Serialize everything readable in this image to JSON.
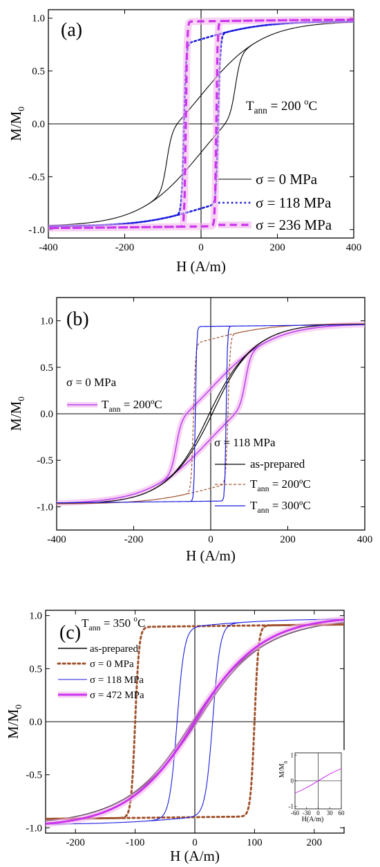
{
  "chart_data": [
    {
      "type": "line",
      "panel_label": "(a)",
      "xlabel": "H (A/m)",
      "ylabel": "M/M₀",
      "xlim": [
        -400,
        400
      ],
      "ylim": [
        -1.08,
        1.08
      ],
      "xticks": [
        -400,
        -200,
        0,
        200,
        400
      ],
      "yticks": [
        -1.0,
        -0.5,
        0.0,
        0.5,
        1.0
      ],
      "annotation": "T_ann = 200 °C",
      "annotation_parts": {
        "main": "T",
        "sub": "ann",
        "rest": " = 200 ",
        "sup": "o",
        "end": "C"
      },
      "legend_position": "bottom-right",
      "series": [
        {
          "name": "σ = 0 MPa",
          "color": "#000000",
          "style": "solid",
          "Hc": 90,
          "Ms": 0.97,
          "Mr": 0.27,
          "k": 0.072,
          "h0": 160,
          "p": 3
        },
        {
          "name": "σ = 118 MPa",
          "color": "#1a1adf",
          "style": "dotted",
          "Hc": 45,
          "Ms": 0.97,
          "Mr": 0.8,
          "k": 0.18,
          "h0": 160,
          "p": 5
        },
        {
          "name": "σ = 236 MPa",
          "color": "#cc33ee",
          "style": "dashed",
          "Hc": 40,
          "Ms": 0.99,
          "Mr": 0.97,
          "k": 0.3,
          "h0": 400,
          "p": 4
        }
      ]
    },
    {
      "type": "line",
      "panel_label": "(b)",
      "xlabel": "H (A/m)",
      "ylabel": "M/M₀",
      "xlim": [
        -400,
        400
      ],
      "ylim": [
        -1.25,
        1.25
      ],
      "xticks": [
        -400,
        -200,
        0,
        200,
        400
      ],
      "yticks": [
        -1.0,
        -0.5,
        0.0,
        0.5,
        1.0
      ],
      "legend_position": "left / bottom-right",
      "legend_groups": [
        {
          "title": "σ = 0 MPa",
          "entries": [
            {
              "name": "T_ann = 200ºC",
              "parts": {
                "main": "T",
                "sub": "ann",
                "rest": " = 200ºC"
              }
            }
          ]
        },
        {
          "title": "σ = 118 MPa",
          "entries": [
            {
              "name": "as-prepared",
              "parts": {
                "main": "as-prepared",
                "sub": "",
                "rest": ""
              }
            },
            {
              "name": "T_ann = 200ºC",
              "parts": {
                "main": "T",
                "sub": "ann",
                "rest": " = 200ºC"
              }
            },
            {
              "name": "T_ann = 300ºC",
              "parts": {
                "main": "T",
                "sub": "ann",
                "rest": " = 300ºC"
              }
            }
          ]
        }
      ],
      "series": [
        {
          "name": "σ = 0 MPa, T_ann = 200ºC",
          "color": "#bb44ee",
          "style": "solid",
          "Hc": 90,
          "Ms": 0.97,
          "Mr": 0.27,
          "k": 0.072,
          "h0": 160,
          "p": 3
        },
        {
          "name": "σ = 118 MPa, as-prepared",
          "color": "#000000",
          "style": "solid",
          "Hc": 15,
          "Ms": 0.97,
          "Mr": 0.12,
          "k": 0.018,
          "h0": 130,
          "p": 4
        },
        {
          "name": "σ = 118 MPa, T_ann = 200ºC",
          "color": "#a0522d",
          "style": "dashed",
          "Hc": 45,
          "Ms": 0.97,
          "Mr": 0.8,
          "k": 0.18,
          "h0": 160,
          "p": 5
        },
        {
          "name": "σ = 118 MPa, T_ann = 300ºC",
          "color": "#1a1adf",
          "style": "solid",
          "Hc": 40,
          "Ms": 0.97,
          "Mr": 0.94,
          "k": 0.3,
          "h0": 600,
          "p": 4
        }
      ]
    },
    {
      "type": "line",
      "panel_label": "(c)",
      "xlabel": "H (A/m)",
      "ylabel": "M/M₀",
      "xlim": [
        -250,
        250
      ],
      "ylim": [
        -1.05,
        1.05
      ],
      "xticks": [
        -200,
        -100,
        0,
        100,
        200
      ],
      "yticks": [
        -1.0,
        -0.5,
        0.0,
        0.5,
        1.0
      ],
      "annotation": "T_ann = 350 °C",
      "annotation_parts": {
        "main": "T",
        "sub": "ann",
        "rest": " = 350 ",
        "sup": "o",
        "end": "C"
      },
      "legend_position": "top-left",
      "series": [
        {
          "name": "as-prepared",
          "color": "#000000",
          "style": "solid",
          "Hc": 15,
          "Ms": 0.97,
          "Mr": 0.12,
          "k": 0.018,
          "h0": 130,
          "p": 4
        },
        {
          "name": "σ = 0 MPa",
          "color": "#a0522d",
          "style": "dotted",
          "Hc": 100,
          "Ms": 0.94,
          "Mr": 0.9,
          "k": 0.15,
          "h0": 600,
          "p": 4
        },
        {
          "name": "σ = 118 MPa",
          "color": "#1a1adf",
          "style": "solid",
          "Hc": 30,
          "Ms": 0.97,
          "Mr": 0.9,
          "k": 0.08,
          "h0": 140,
          "p": 5
        },
        {
          "name": "σ = 472 MPa",
          "color": "#cc33ee",
          "style": "solid",
          "Hc": 3,
          "Ms": 0.99,
          "Mr": 0.05,
          "k": 0.028,
          "h0": 120,
          "p": 4
        }
      ],
      "inset": {
        "xlabel": "H(A/m)",
        "ylabel": "M/M₀",
        "xlim": [
          -60,
          60
        ],
        "ylim": [
          -1.1,
          1.1
        ],
        "xticks": [
          -60,
          -30,
          0,
          30,
          60
        ],
        "yticks": [
          -1,
          0,
          1
        ],
        "series": [
          {
            "name": "σ = 472 MPa",
            "color": "#cc33ee",
            "style": "solid",
            "Hc": 3,
            "Ms": 0.99,
            "Mr": 0.05,
            "k": 0.028,
            "h0": 120,
            "p": 4
          }
        ]
      }
    }
  ]
}
